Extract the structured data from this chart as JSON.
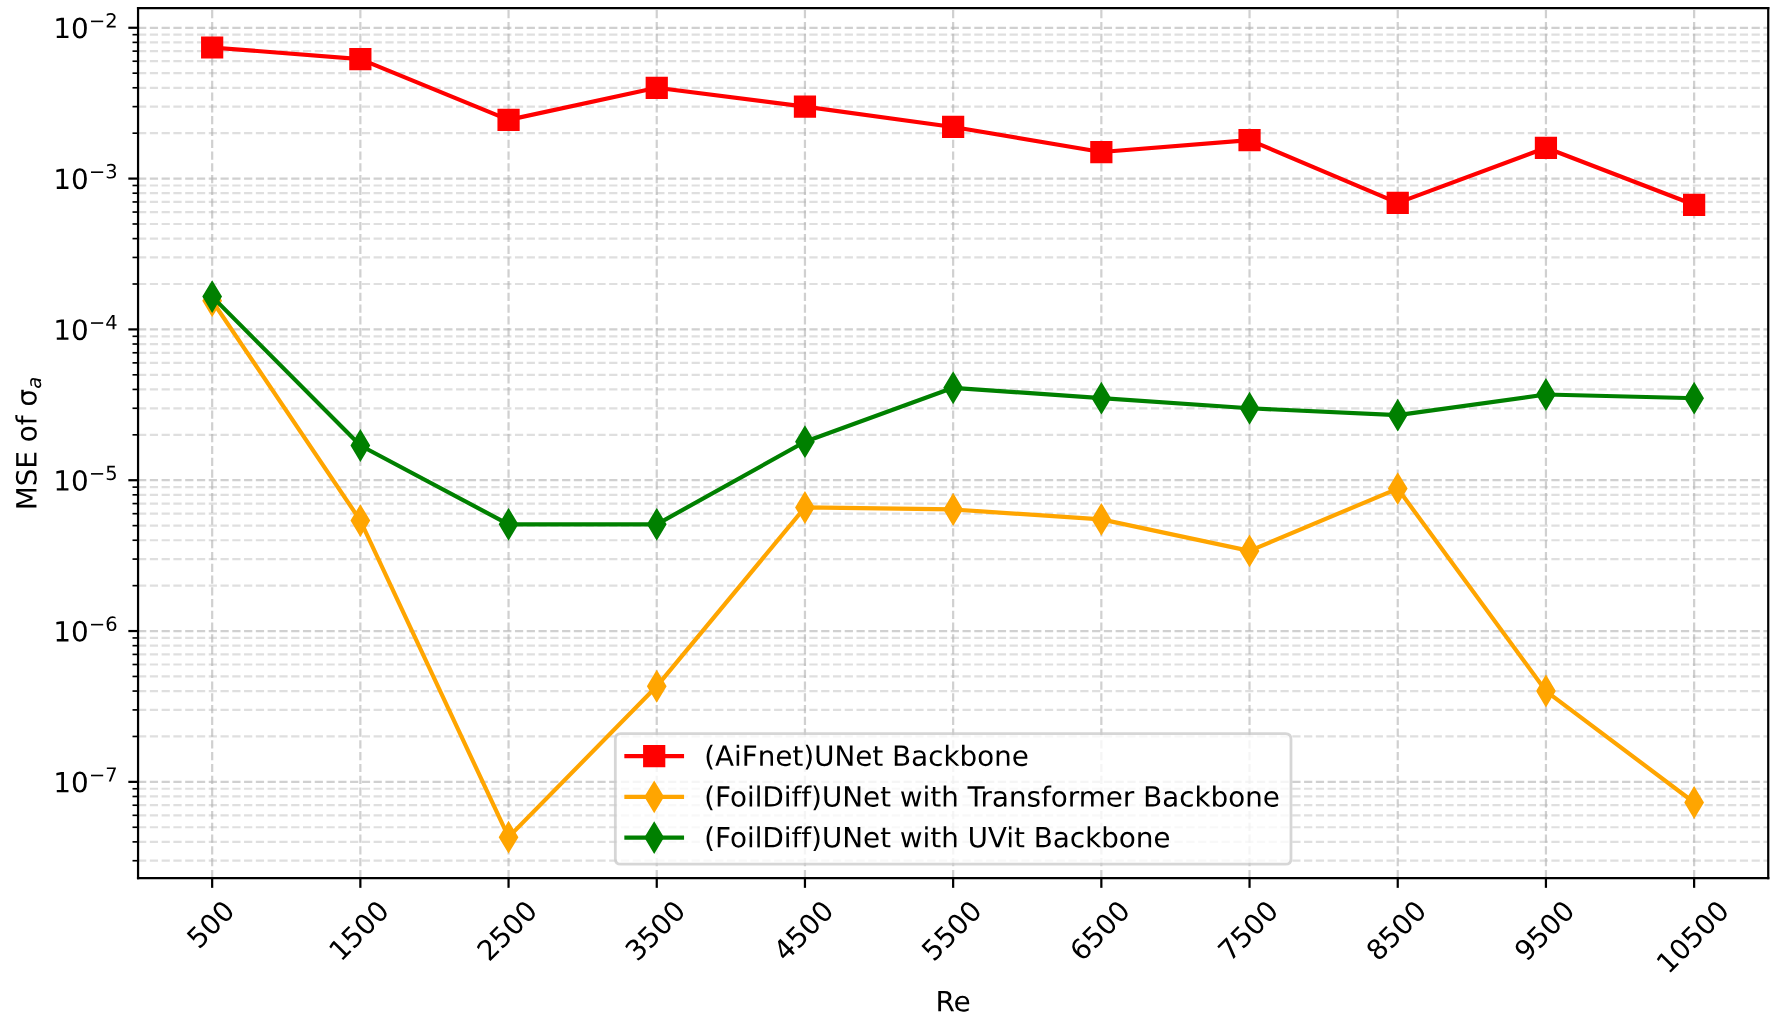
{
  "chart_data": {
    "type": "line",
    "xlabel": "Re",
    "ylabel": "MSE of σ$_{a}$",
    "categories": [
      "500",
      "1500",
      "2500",
      "3500",
      "4500",
      "5500",
      "6500",
      "7500",
      "8500",
      "9500",
      "10500"
    ],
    "log": "y",
    "ylim": [
      2.3e-08,
      0.0135
    ],
    "yticks": [
      {
        "value": 1e-07,
        "label": "10$^{−7}$"
      },
      {
        "value": 1e-06,
        "label": "10$^{−6}$"
      },
      {
        "value": 1e-05,
        "label": "10$^{−5}$"
      },
      {
        "value": 0.0001,
        "label": "10$^{−4}$"
      },
      {
        "value": 0.001,
        "label": "10$^{−3}$"
      },
      {
        "value": 0.01,
        "label": "10$^{−2}$"
      }
    ],
    "grid": true,
    "legend": "bottom",
    "line_style": "solid",
    "series": [
      {
        "name": "(AiFnet)UNet Backbone",
        "color": "#ff0000",
        "marker": "square",
        "values": [
          0.0074,
          0.0062,
          0.00245,
          0.004,
          0.003,
          0.0022,
          0.0015,
          0.0018,
          0.00069,
          0.0016,
          0.00067
        ]
      },
      {
        "name": "(FoilDiff)UNet with Transformer Backbone",
        "color": "#ffa500",
        "marker": "diamond",
        "values": [
          0.000155,
          5.4e-06,
          4.3e-08,
          4.3e-07,
          6.6e-06,
          6.4e-06,
          5.5e-06,
          3.4e-06,
          8.8e-06,
          4e-07,
          7.3e-08
        ]
      },
      {
        "name": "(FoilDiff)UNet with UVit Backbone",
        "color": "#008000",
        "marker": "diamond",
        "values": [
          0.000165,
          1.7e-05,
          5.1e-06,
          5.1e-06,
          1.8e-05,
          4.1e-05,
          3.5e-05,
          3e-05,
          2.7e-05,
          3.7e-05,
          3.5e-05
        ]
      }
    ]
  }
}
